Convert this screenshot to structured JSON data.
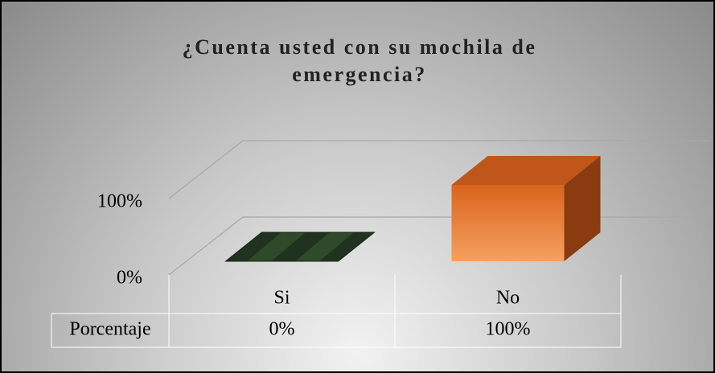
{
  "chart_data": {
    "type": "bar3d",
    "title": "¿Cuenta usted con su mochila de emergencia?",
    "categories": [
      "Si",
      "No"
    ],
    "series": [
      {
        "name": "Porcentaje",
        "values": [
          0,
          100
        ],
        "value_labels": [
          "0%",
          "100%"
        ]
      }
    ],
    "colors": [
      "#2f4a2b",
      "#e8762b"
    ],
    "ylim": [
      0,
      100
    ],
    "yticks": [
      {
        "value": 0,
        "label": "0%"
      },
      {
        "value": 100,
        "label": "100%"
      }
    ],
    "grid": true,
    "data_table": true
  }
}
